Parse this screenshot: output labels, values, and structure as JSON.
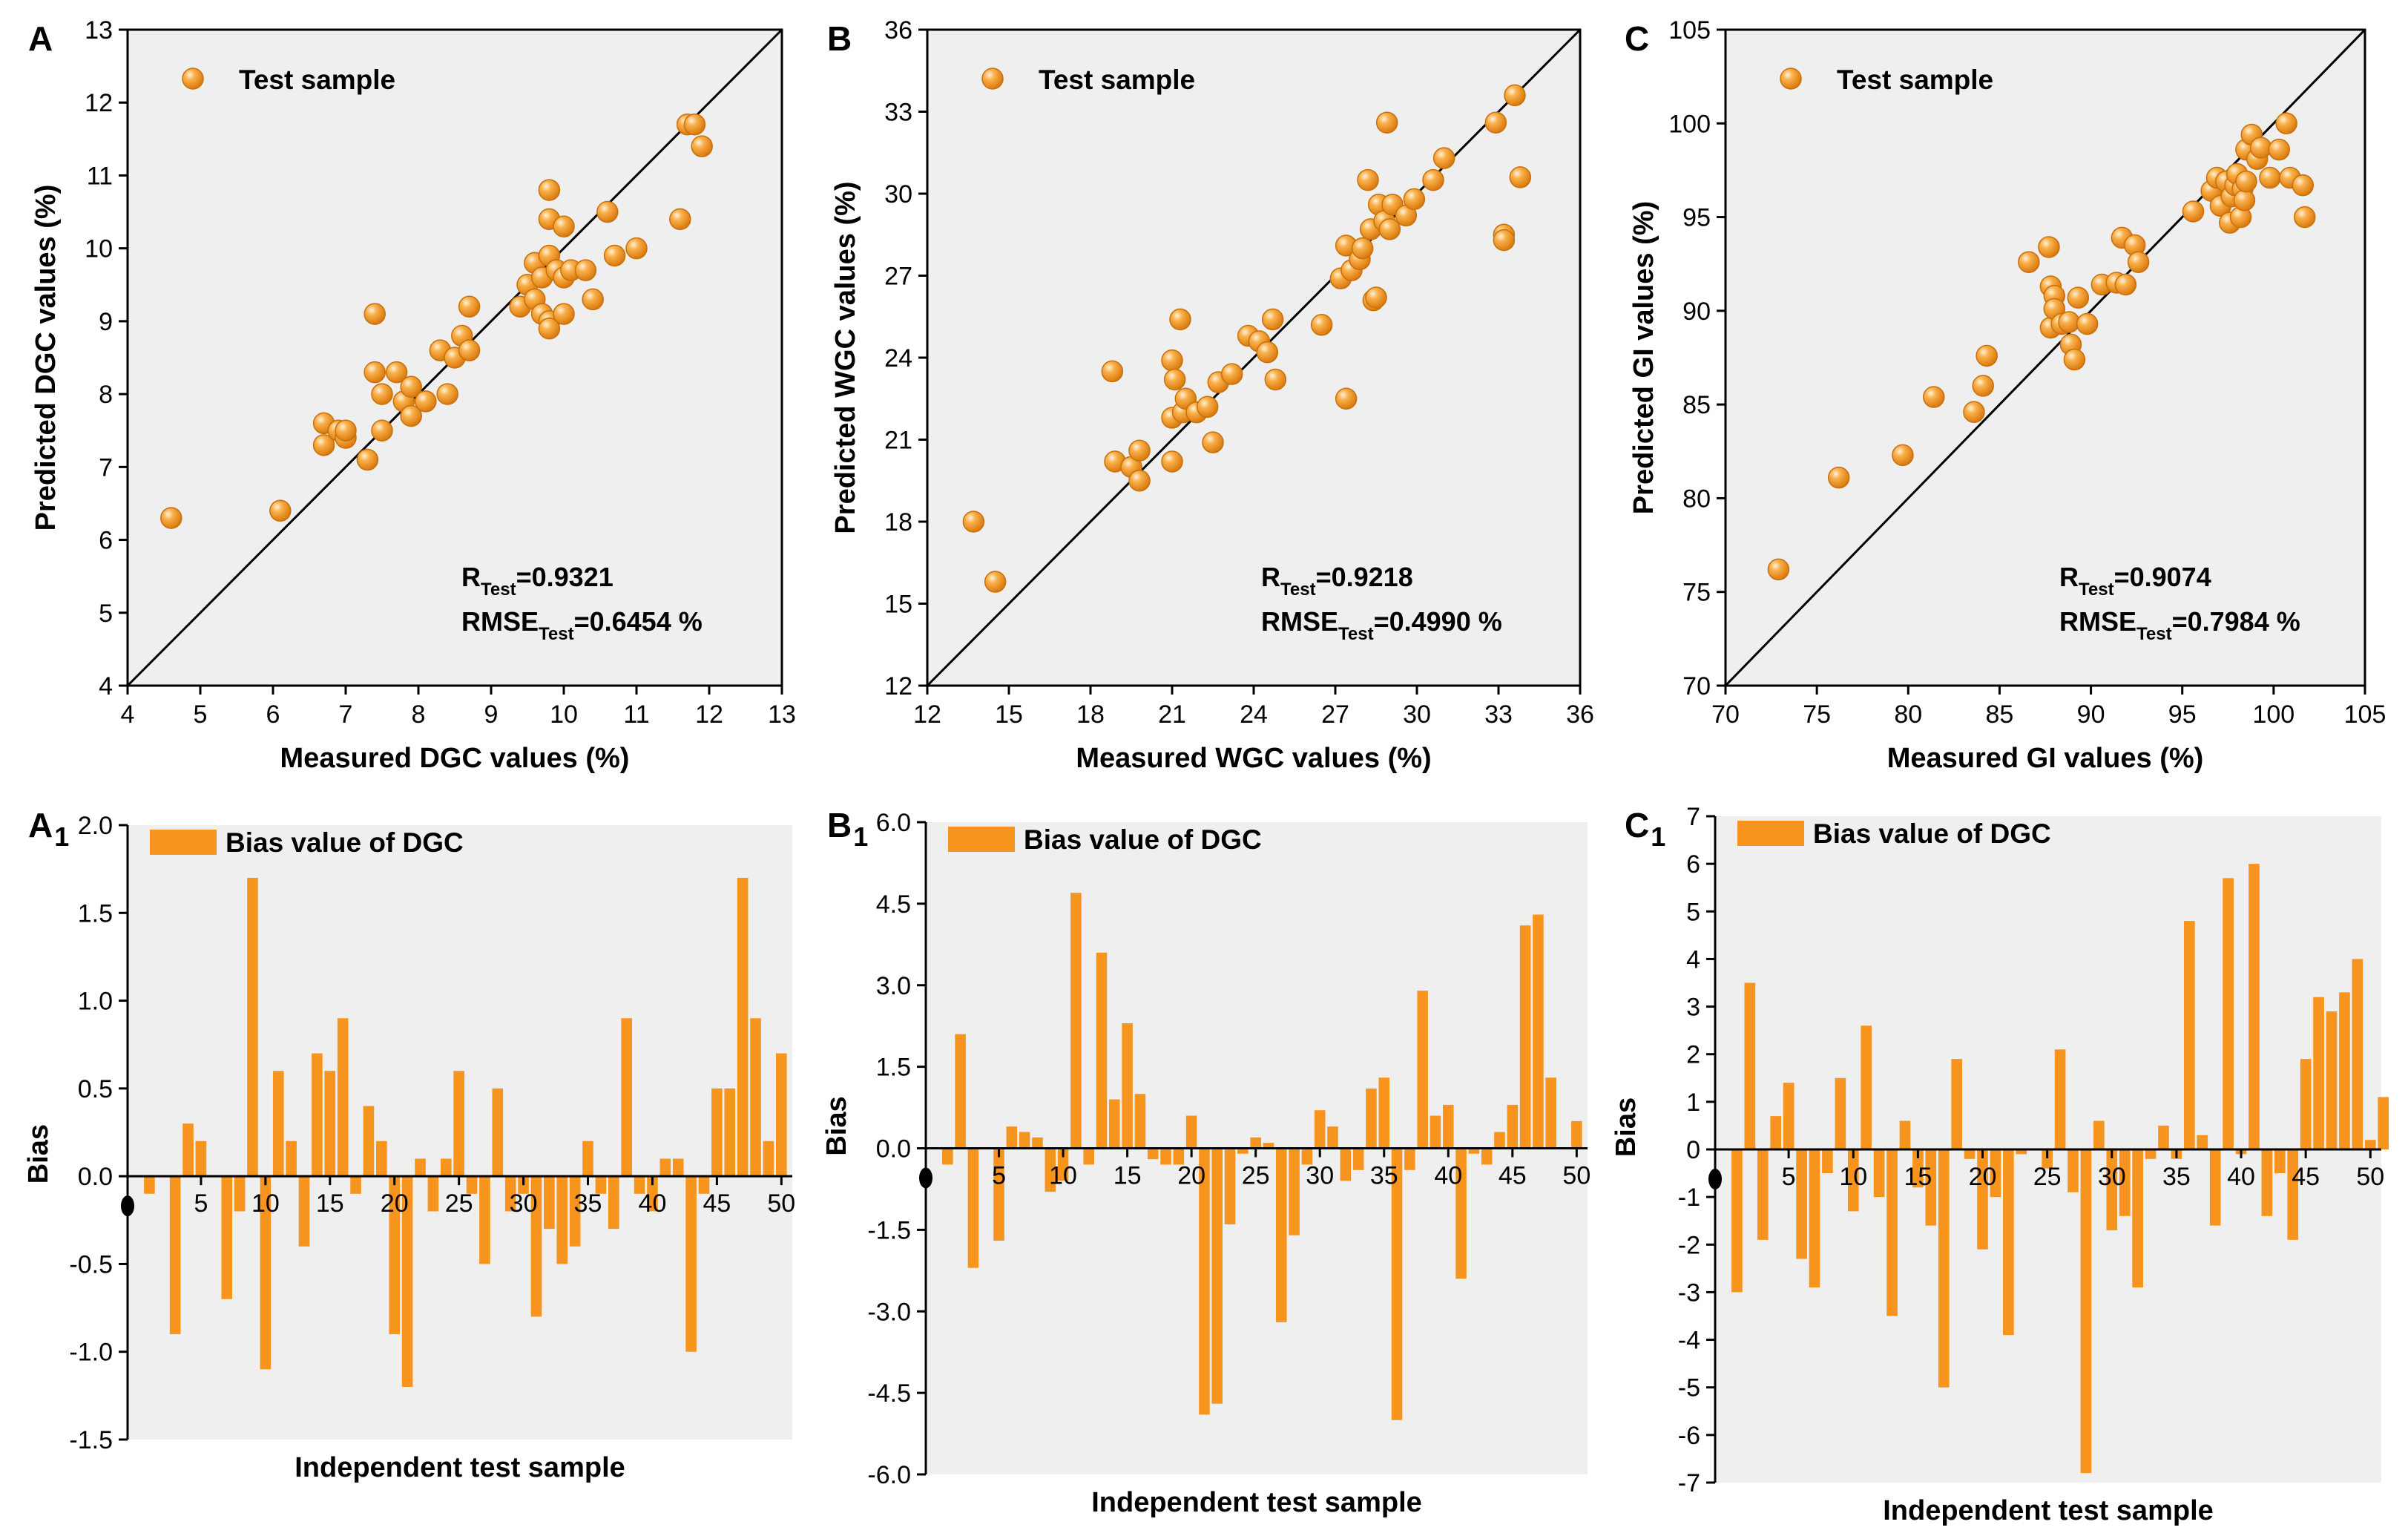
{
  "figure": {
    "charts": [
      {
        "id": "A",
        "panel_label": "A",
        "panel_sub": ""
      },
      {
        "id": "B",
        "panel_label": "B",
        "panel_sub": ""
      },
      {
        "id": "C",
        "panel_label": "C",
        "panel_sub": ""
      },
      {
        "id": "A1",
        "panel_label": "A",
        "panel_sub": "1"
      },
      {
        "id": "B1",
        "panel_label": "B",
        "panel_sub": "1"
      },
      {
        "id": "C1",
        "panel_label": "C",
        "panel_sub": "1"
      }
    ]
  },
  "colors": {
    "plot_bg": "#efefef",
    "marker": "#f39a1e",
    "marker_highlight": "#fde3b6",
    "marker_edge": "#c8700c",
    "bar": "#f7941d",
    "axis": "#000000"
  },
  "chart_data": [
    {
      "id": "A",
      "type": "scatter",
      "title": "",
      "xlabel": "Measured DGC values (%)",
      "ylabel": "Predicted DGC values (%)",
      "xlim": [
        4,
        13
      ],
      "ylim": [
        4,
        13
      ],
      "xticks": [
        4,
        5,
        6,
        7,
        8,
        9,
        10,
        11,
        12,
        13
      ],
      "yticks": [
        4,
        5,
        6,
        7,
        8,
        9,
        10,
        11,
        12,
        13
      ],
      "legend": "Test sample",
      "identity_line": true,
      "stat_r": {
        "main": "R",
        "sub": "Test",
        "value": "=0.9321"
      },
      "stat_rmse": {
        "main": "RMSE",
        "sub": "Test",
        "value": "=0.6454 %"
      },
      "points": [
        [
          4.6,
          6.3
        ],
        [
          6.1,
          6.4
        ],
        [
          6.7,
          7.6
        ],
        [
          6.7,
          7.3
        ],
        [
          6.9,
          7.5
        ],
        [
          7.0,
          7.4
        ],
        [
          7.0,
          7.5
        ],
        [
          7.3,
          7.1
        ],
        [
          7.4,
          9.1
        ],
        [
          7.4,
          8.3
        ],
        [
          7.5,
          8.0
        ],
        [
          7.5,
          7.5
        ],
        [
          7.7,
          8.3
        ],
        [
          7.8,
          7.9
        ],
        [
          7.9,
          7.7
        ],
        [
          7.9,
          8.1
        ],
        [
          8.1,
          7.9
        ],
        [
          8.3,
          8.6
        ],
        [
          8.4,
          8.0
        ],
        [
          8.5,
          8.5
        ],
        [
          8.6,
          8.8
        ],
        [
          8.7,
          9.2
        ],
        [
          8.7,
          8.6
        ],
        [
          9.4,
          9.2
        ],
        [
          9.5,
          9.5
        ],
        [
          9.6,
          9.8
        ],
        [
          9.6,
          9.3
        ],
        [
          9.7,
          9.6
        ],
        [
          9.7,
          9.1
        ],
        [
          9.8,
          10.8
        ],
        [
          9.8,
          10.4
        ],
        [
          9.8,
          9.9
        ],
        [
          9.9,
          9.7
        ],
        [
          9.8,
          9.0
        ],
        [
          9.8,
          8.9
        ],
        [
          10.0,
          10.3
        ],
        [
          10.0,
          9.6
        ],
        [
          10.0,
          9.1
        ],
        [
          10.1,
          9.7
        ],
        [
          10.3,
          9.7
        ],
        [
          10.4,
          9.3
        ],
        [
          10.6,
          10.5
        ],
        [
          10.7,
          9.9
        ],
        [
          11.0,
          10.0
        ],
        [
          11.6,
          10.4
        ],
        [
          11.7,
          11.7
        ],
        [
          11.8,
          11.7
        ],
        [
          11.9,
          11.4
        ]
      ]
    },
    {
      "id": "B",
      "type": "scatter",
      "title": "",
      "xlabel": "Measured WGC values (%)",
      "ylabel": "Predicted WGC values (%)",
      "xlim": [
        12,
        36
      ],
      "ylim": [
        12,
        36
      ],
      "xticks": [
        12,
        15,
        18,
        21,
        24,
        27,
        30,
        33,
        36
      ],
      "yticks": [
        12,
        15,
        18,
        21,
        24,
        27,
        30,
        33,
        36
      ],
      "legend": "Test sample",
      "identity_line": true,
      "stat_r": {
        "main": "R",
        "sub": "Test",
        "value": "=0.9218"
      },
      "stat_rmse": {
        "main": "RMSE",
        "sub": "Test",
        "value": "=0.4990 %"
      },
      "points": [
        [
          13.7,
          18.0
        ],
        [
          14.5,
          15.8
        ],
        [
          18.8,
          23.5
        ],
        [
          18.9,
          20.2
        ],
        [
          19.5,
          20.0
        ],
        [
          19.8,
          20.6
        ],
        [
          19.8,
          19.5
        ],
        [
          21.0,
          23.9
        ],
        [
          21.0,
          21.8
        ],
        [
          21.0,
          20.2
        ],
        [
          21.1,
          23.2
        ],
        [
          21.3,
          25.4
        ],
        [
          21.4,
          22.0
        ],
        [
          21.5,
          22.5
        ],
        [
          21.9,
          22.0
        ],
        [
          22.3,
          22.2
        ],
        [
          22.5,
          20.9
        ],
        [
          22.7,
          23.1
        ],
        [
          23.2,
          23.4
        ],
        [
          23.8,
          24.8
        ],
        [
          24.2,
          24.6
        ],
        [
          24.5,
          24.2
        ],
        [
          24.7,
          25.4
        ],
        [
          24.8,
          23.2
        ],
        [
          26.5,
          25.2
        ],
        [
          27.2,
          26.9
        ],
        [
          27.4,
          28.1
        ],
        [
          27.4,
          22.5
        ],
        [
          27.6,
          27.2
        ],
        [
          27.9,
          27.6
        ],
        [
          28.0,
          28.0
        ],
        [
          28.2,
          30.5
        ],
        [
          28.3,
          28.7
        ],
        [
          28.4,
          26.1
        ],
        [
          28.5,
          26.2
        ],
        [
          28.6,
          29.6
        ],
        [
          28.8,
          29.0
        ],
        [
          28.9,
          32.6
        ],
        [
          29.0,
          28.7
        ],
        [
          29.1,
          29.6
        ],
        [
          29.6,
          29.2
        ],
        [
          29.9,
          29.8
        ],
        [
          30.6,
          30.5
        ],
        [
          31.0,
          31.3
        ],
        [
          32.9,
          32.6
        ],
        [
          33.2,
          28.5
        ],
        [
          33.2,
          28.3
        ],
        [
          33.6,
          33.6
        ],
        [
          33.8,
          30.6
        ]
      ]
    },
    {
      "id": "C",
      "type": "scatter",
      "title": "",
      "xlabel": "Measured GI values (%)",
      "ylabel": "Predicted GI values (%)",
      "xlim": [
        70,
        105
      ],
      "ylim": [
        70,
        105
      ],
      "xticks": [
        70,
        75,
        80,
        85,
        90,
        95,
        100,
        105
      ],
      "yticks": [
        70,
        75,
        80,
        85,
        90,
        95,
        100,
        105
      ],
      "legend": "Test sample",
      "identity_line": true,
      "stat_r": {
        "main": "R",
        "sub": "Test",
        "value": "=0.9074"
      },
      "stat_rmse": {
        "main": "RMSE",
        "sub": "Test",
        "value": "=0.7984 %"
      },
      "points": [
        [
          72.9,
          76.2
        ],
        [
          76.2,
          81.1
        ],
        [
          79.7,
          82.3
        ],
        [
          81.4,
          85.4
        ],
        [
          83.6,
          84.6
        ],
        [
          84.1,
          86.0
        ],
        [
          84.3,
          87.6
        ],
        [
          86.6,
          92.6
        ],
        [
          87.7,
          93.4
        ],
        [
          87.8,
          89.1
        ],
        [
          87.8,
          91.3
        ],
        [
          88.0,
          90.8
        ],
        [
          88.0,
          90.1
        ],
        [
          88.4,
          89.3
        ],
        [
          88.8,
          89.4
        ],
        [
          88.9,
          88.2
        ],
        [
          89.1,
          87.4
        ],
        [
          89.3,
          90.7
        ],
        [
          89.8,
          89.3
        ],
        [
          90.6,
          91.4
        ],
        [
          91.4,
          91.5
        ],
        [
          91.7,
          93.9
        ],
        [
          91.9,
          91.4
        ],
        [
          92.4,
          93.5
        ],
        [
          92.6,
          92.6
        ],
        [
          95.6,
          95.3
        ],
        [
          96.6,
          96.4
        ],
        [
          96.9,
          97.1
        ],
        [
          97.1,
          95.6
        ],
        [
          97.4,
          96.9
        ],
        [
          97.6,
          94.7
        ],
        [
          97.7,
          96.1
        ],
        [
          97.9,
          96.7
        ],
        [
          98.0,
          97.3
        ],
        [
          98.2,
          95.0
        ],
        [
          98.3,
          96.5
        ],
        [
          98.4,
          95.9
        ],
        [
          98.5,
          98.6
        ],
        [
          98.5,
          96.9
        ],
        [
          98.8,
          99.4
        ],
        [
          99.1,
          98.1
        ],
        [
          99.3,
          98.7
        ],
        [
          99.8,
          97.1
        ],
        [
          100.3,
          98.6
        ],
        [
          100.7,
          100.0
        ],
        [
          100.9,
          97.1
        ],
        [
          101.6,
          96.7
        ],
        [
          101.7,
          95.0
        ]
      ]
    },
    {
      "id": "A1",
      "type": "bar",
      "title": "",
      "xlabel": "Independent test sample",
      "ylabel": "Bias",
      "ylim": [
        -1.5,
        2.0
      ],
      "yticks": [
        -1.5,
        -1.0,
        -0.5,
        0.0,
        0.5,
        1.0,
        1.5,
        2.0
      ],
      "ytick_labels": [
        "-1.5",
        "-1.0",
        "-0.5",
        "0.0",
        "0.5",
        "1.0",
        "1.5",
        "2.0"
      ],
      "xticks": [
        5,
        10,
        15,
        20,
        25,
        30,
        35,
        40,
        45,
        50
      ],
      "x_origin_marker": true,
      "legend": "Bias value of DGC",
      "values": [
        -0.1,
        0.0,
        -0.9,
        0.3,
        0.2,
        0.0,
        -0.7,
        -0.2,
        1.7,
        -1.1,
        0.6,
        0.2,
        -0.4,
        0.7,
        0.6,
        0.9,
        -0.1,
        0.4,
        0.2,
        -0.9,
        -1.2,
        0.1,
        -0.2,
        0.1,
        0.6,
        -0.1,
        -0.5,
        0.5,
        -0.2,
        -0.1,
        -0.8,
        -0.3,
        -0.5,
        -0.4,
        0.2,
        -0.1,
        -0.3,
        0.9,
        -0.1,
        -0.2,
        0.1,
        0.1,
        -1.0,
        -0.1,
        0.5,
        0.5,
        1.7,
        0.9,
        0.2,
        0.7
      ]
    },
    {
      "id": "B1",
      "type": "bar",
      "title": "",
      "xlabel": "Independent test sample",
      "ylabel": "Bias",
      "ylim": [
        -6.0,
        6.0
      ],
      "yticks": [
        -6.0,
        -4.5,
        -3.0,
        -1.5,
        0.0,
        1.5,
        3.0,
        4.5,
        6.0
      ],
      "ytick_labels": [
        "-6.0",
        "-4.5",
        "-3.0",
        "-1.5",
        "0.0",
        "1.5",
        "3.0",
        "4.5",
        "6.0"
      ],
      "xticks": [
        5,
        10,
        15,
        20,
        25,
        30,
        35,
        40,
        45,
        50
      ],
      "x_origin_marker": true,
      "legend": "Bias value of DGC",
      "values": [
        -0.3,
        2.1,
        -2.2,
        0.0,
        -1.7,
        0.4,
        0.3,
        0.2,
        -0.8,
        -0.6,
        4.7,
        -0.3,
        3.6,
        0.9,
        2.3,
        1.0,
        -0.2,
        -0.3,
        -0.3,
        0.6,
        -4.9,
        -4.7,
        -1.4,
        -0.1,
        0.2,
        0.1,
        -3.2,
        -1.6,
        -0.3,
        0.7,
        0.4,
        -0.6,
        -0.4,
        1.1,
        1.3,
        -5.0,
        -0.4,
        2.9,
        0.6,
        0.8,
        -2.4,
        -0.1,
        -0.3,
        0.3,
        0.8,
        4.1,
        4.3,
        1.3,
        0.0,
        0.5
      ]
    },
    {
      "id": "C1",
      "type": "bar",
      "title": "",
      "xlabel": "Independent test sample",
      "ylabel": "Bias",
      "ylim": [
        -7,
        7
      ],
      "yticks": [
        -7,
        -6,
        -5,
        -4,
        -3,
        -2,
        -1,
        0,
        1,
        2,
        3,
        4,
        5,
        6,
        7
      ],
      "ytick_labels": [
        "-7",
        "-6",
        "-5",
        "-4",
        "-3",
        "-2",
        "-1",
        "0",
        "1",
        "2",
        "3",
        "4",
        "5",
        "6",
        "7"
      ],
      "xticks": [
        5,
        10,
        15,
        20,
        25,
        30,
        35,
        40,
        45,
        50
      ],
      "x_origin_marker": true,
      "legend": "Bias value of DGC",
      "values": [
        -3.0,
        3.5,
        -1.9,
        0.7,
        1.4,
        -2.3,
        -2.9,
        -0.5,
        1.5,
        -1.3,
        2.6,
        -1.0,
        -3.5,
        0.6,
        -0.8,
        -1.6,
        -5.0,
        1.9,
        -0.2,
        -2.1,
        -1.0,
        -3.9,
        -0.1,
        0.0,
        -0.4,
        2.1,
        -0.9,
        -6.8,
        0.6,
        -1.7,
        -1.4,
        -2.9,
        -0.2,
        0.5,
        -0.2,
        4.8,
        0.3,
        -1.6,
        5.7,
        -0.1,
        6.0,
        -1.4,
        -0.5,
        -1.9,
        1.9,
        3.2,
        2.9,
        3.3,
        4.0,
        0.2,
        1.1
      ]
    }
  ]
}
